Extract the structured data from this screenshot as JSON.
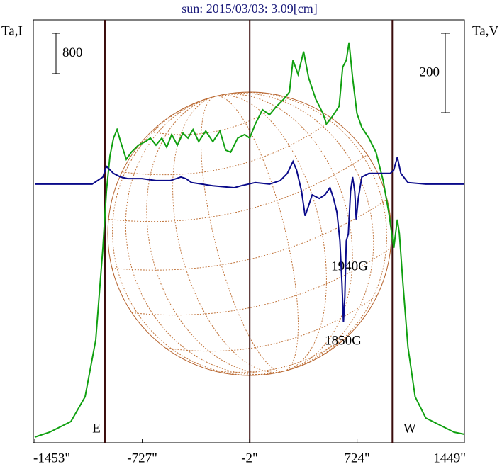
{
  "chart_data": {
    "type": "line",
    "title": "sun: 2015/03/03: 3.09[cm]",
    "y_label": "Ta,I",
    "y2_label": "Ta,V",
    "xlim": [
      -1453,
      1449
    ],
    "xticks": [
      {
        "value": -1453,
        "label": "-1453\""
      },
      {
        "value": -727,
        "label": "-727\""
      },
      {
        "value": -2,
        "label": "-2\""
      },
      {
        "value": 724,
        "label": "724\""
      },
      {
        "value": 1449,
        "label": "1449\""
      }
    ],
    "ylim": [
      0,
      8400
    ],
    "y2lim": [
      -652,
      416
    ],
    "i_scale_bar": 800,
    "v_scale_bar": 200,
    "vlines": [
      -979,
      -1,
      962
    ],
    "limb_labels": [
      "E",
      "W"
    ],
    "annotations": [
      "1940G",
      "1850G"
    ],
    "series": [
      {
        "name": "I",
        "color": "#10a010",
        "axis": "y",
        "x": [
          -1453,
          -1352,
          -1209,
          -1113,
          -1041,
          -993,
          -969,
          -945,
          -921,
          -897,
          -873,
          -835,
          -801,
          -753,
          -705,
          -672,
          -634,
          -595,
          -562,
          -528,
          -490,
          -452,
          -418,
          -384,
          -346,
          -298,
          -250,
          -202,
          -164,
          -130,
          -82,
          -35,
          -1,
          37,
          85,
          133,
          181,
          229,
          267,
          291,
          325,
          363,
          397,
          445,
          493,
          517,
          555,
          603,
          627,
          651,
          670,
          694,
          723,
          756,
          804,
          852,
          900,
          938,
          972,
          996,
          1010,
          1034,
          1068,
          1116,
          1188,
          1283,
          1379,
          1449
        ],
        "values": [
          112,
          211,
          422,
          913,
          2037,
          3864,
          4988,
          5691,
          6042,
          6210,
          5971,
          5620,
          5761,
          5901,
          5971,
          6042,
          5901,
          6042,
          5859,
          6112,
          5901,
          6140,
          6042,
          6210,
          5971,
          6182,
          5971,
          6182,
          5803,
          5761,
          6042,
          6112,
          6042,
          6323,
          6604,
          6505,
          6674,
          6814,
          6955,
          7587,
          7306,
          7756,
          7236,
          6814,
          6533,
          6323,
          6463,
          6674,
          7447,
          7587,
          7938,
          7236,
          6533,
          6252,
          6042,
          5761,
          5199,
          4566,
          3864,
          4426,
          4145,
          3161,
          1897,
          913,
          492,
          351,
          211,
          169
        ]
      },
      {
        "name": "V",
        "color": "#0a0a8a",
        "axis": "y2",
        "x": [
          -1453,
          -1209,
          -1065,
          -993,
          -969,
          -945,
          -921,
          -873,
          -825,
          -729,
          -634,
          -538,
          -466,
          -432,
          -394,
          -250,
          -106,
          -58,
          37,
          133,
          205,
          253,
          291,
          315,
          349,
          373,
          397,
          421,
          469,
          507,
          541,
          565,
          588,
          608,
          622,
          632,
          641,
          651,
          665,
          680,
          694,
          708,
          718,
          732,
          756,
          804,
          900,
          948,
          972,
          996,
          1020,
          1068,
          1188,
          1449
        ],
        "values": [
          0,
          0,
          0,
          18,
          45,
          36,
          27,
          18,
          14,
          14,
          9,
          9,
          18,
          14,
          4,
          -4,
          -9,
          -4,
          4,
          0,
          9,
          27,
          57,
          36,
          -18,
          -80,
          -54,
          -27,
          -36,
          -27,
          -9,
          -36,
          -71,
          -143,
          -250,
          -348,
          -286,
          -143,
          -125,
          -18,
          18,
          -18,
          -89,
          -36,
          18,
          27,
          27,
          27,
          36,
          68,
          27,
          4,
          0,
          0
        ]
      }
    ]
  }
}
